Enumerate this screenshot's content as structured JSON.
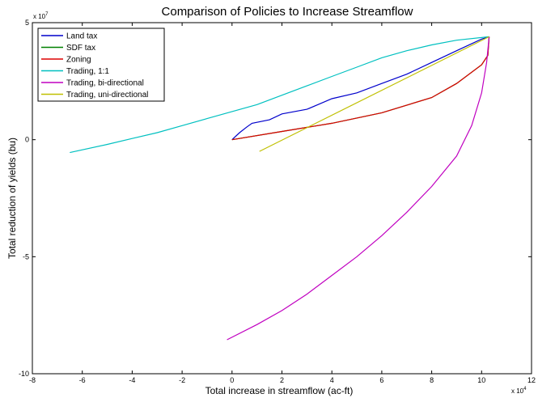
{
  "chart_data": {
    "type": "line",
    "title": "Comparison of Policies to Increase Streamflow",
    "xlabel": "Total increase in streamflow (ac-ft)",
    "ylabel": "Total reduction of yields (bu)",
    "x_multiplier": "x 10",
    "x_exponent": "4",
    "y_multiplier": "x 10",
    "y_exponent": "7",
    "xlim": [
      -8,
      12
    ],
    "ylim": [
      -10,
      5
    ],
    "xticks": [
      -8,
      -6,
      -4,
      -2,
      0,
      2,
      4,
      6,
      8,
      10,
      12
    ],
    "yticks": [
      5,
      0,
      -5,
      -10
    ],
    "grid": false,
    "legend_position": "top-left",
    "series": [
      {
        "name": "Land tax",
        "color": "#0000cc",
        "points": [
          [
            0,
            0
          ],
          [
            0.3,
            0.3
          ],
          [
            0.6,
            0.55
          ],
          [
            0.8,
            0.7
          ],
          [
            1.5,
            0.85
          ],
          [
            2,
            1.1
          ],
          [
            3,
            1.3
          ],
          [
            4,
            1.75
          ],
          [
            5,
            2.0
          ],
          [
            6,
            2.4
          ],
          [
            7,
            2.8
          ],
          [
            8,
            3.3
          ],
          [
            9,
            3.8
          ],
          [
            10,
            4.3
          ],
          [
            10.3,
            4.4
          ]
        ]
      },
      {
        "name": "SDF tax",
        "color": "#008000",
        "points": [
          [
            0,
            0
          ],
          [
            2,
            0.35
          ],
          [
            4,
            0.7
          ],
          [
            6,
            1.15
          ],
          [
            8,
            1.8
          ],
          [
            9,
            2.4
          ],
          [
            10,
            3.2
          ],
          [
            10.25,
            3.6
          ],
          [
            10.3,
            4.4
          ]
        ]
      },
      {
        "name": "Zoning",
        "color": "#dd0000",
        "points": [
          [
            0,
            0
          ],
          [
            2,
            0.35
          ],
          [
            4,
            0.7
          ],
          [
            6,
            1.15
          ],
          [
            8,
            1.8
          ],
          [
            9,
            2.4
          ],
          [
            10,
            3.2
          ],
          [
            10.25,
            3.6
          ],
          [
            10.3,
            4.4
          ]
        ]
      },
      {
        "name": "Trading, 1:1",
        "color": "#00c0c0",
        "points": [
          [
            -6.5,
            -0.55
          ],
          [
            -5,
            -0.2
          ],
          [
            -4,
            0.05
          ],
          [
            -3,
            0.3
          ],
          [
            -2,
            0.6
          ],
          [
            -1,
            0.9
          ],
          [
            0,
            1.2
          ],
          [
            1,
            1.5
          ],
          [
            2,
            1.9
          ],
          [
            3,
            2.3
          ],
          [
            4,
            2.7
          ],
          [
            5,
            3.1
          ],
          [
            6,
            3.5
          ],
          [
            7,
            3.8
          ],
          [
            8,
            4.05
          ],
          [
            9,
            4.25
          ],
          [
            10.3,
            4.4
          ]
        ]
      },
      {
        "name": "Trading, bi-directional",
        "color": "#c000c0",
        "points": [
          [
            -0.2,
            -8.55
          ],
          [
            1,
            -7.9
          ],
          [
            2,
            -7.3
          ],
          [
            3,
            -6.6
          ],
          [
            4,
            -5.8
          ],
          [
            5,
            -5.0
          ],
          [
            6,
            -4.1
          ],
          [
            7,
            -3.1
          ],
          [
            8,
            -2.0
          ],
          [
            9,
            -0.7
          ],
          [
            9.6,
            0.6
          ],
          [
            10.0,
            2.0
          ],
          [
            10.2,
            3.3
          ],
          [
            10.3,
            4.4
          ]
        ]
      },
      {
        "name": "Trading, uni-directional",
        "color": "#c0c000",
        "points": [
          [
            1.1,
            -0.5
          ],
          [
            10.3,
            4.4
          ]
        ]
      }
    ]
  }
}
